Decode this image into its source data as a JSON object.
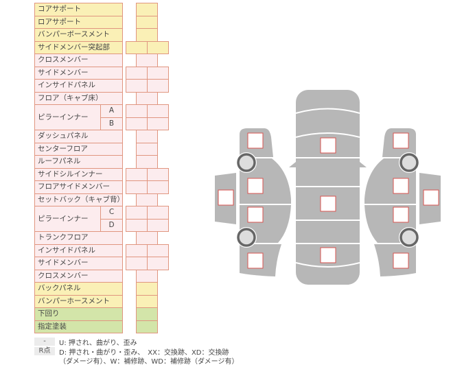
{
  "colors": {
    "yellow": "#faf0b6",
    "pink": "#fcecee",
    "green": "#d3e5a9",
    "border": "#e0957f",
    "body": "#b7b7b7",
    "mark": "#d9534f"
  },
  "rows": [
    {
      "label": "コアサポート",
      "color": "y",
      "type": "single"
    },
    {
      "label": "ロアサポート",
      "color": "y",
      "type": "single"
    },
    {
      "label": "バンパーボースメント",
      "color": "y",
      "type": "single"
    },
    {
      "label": "サイドメンバー突起部",
      "color": "y",
      "type": "double"
    },
    {
      "label": "クロスメンバー",
      "color": "p",
      "type": "single"
    },
    {
      "label": "サイドメンバー",
      "color": "p",
      "type": "double"
    },
    {
      "label": "インサイドパネル",
      "color": "p",
      "type": "double"
    },
    {
      "label": "フロア（キャブ床）",
      "color": "p",
      "type": "single"
    },
    {
      "label": "ピラーインナー",
      "sub": [
        "A",
        "B"
      ],
      "color": "p",
      "type": "double"
    },
    {
      "label": "ダッシュパネル",
      "color": "p",
      "type": "single"
    },
    {
      "label": "センターフロア",
      "color": "p",
      "type": "single"
    },
    {
      "label": "ルーフパネル",
      "color": "p",
      "type": "single"
    },
    {
      "label": "サイドシルインナー",
      "color": "p",
      "type": "double"
    },
    {
      "label": "フロアサイドメンバー",
      "color": "p",
      "type": "double"
    },
    {
      "label": "セットバック（キャブ背）",
      "color": "p",
      "type": "single"
    },
    {
      "label": "ピラーインナー",
      "sub": [
        "C",
        "D"
      ],
      "color": "p",
      "type": "double"
    },
    {
      "label": "トランクフロア",
      "color": "p",
      "type": "single"
    },
    {
      "label": "インサイドパネル",
      "color": "p",
      "type": "double"
    },
    {
      "label": "サイドメンバー",
      "color": "p",
      "type": "double"
    },
    {
      "label": "クロスメンバー",
      "color": "p",
      "type": "single"
    },
    {
      "label": "バックパネル",
      "color": "y",
      "type": "single"
    },
    {
      "label": "バンパーホースメント",
      "color": "y",
      "type": "single"
    },
    {
      "label": "下回り",
      "color": "g",
      "type": "single"
    },
    {
      "label": "指定塗装",
      "color": "g",
      "type": "single"
    }
  ],
  "legend": {
    "key1": "-",
    "text1": "U: 押され、曲がり、歪み",
    "key2": "R点",
    "text2a": "D: 押され・曲がり・歪み、　XX：交換跡、XD：交換跡",
    "text2b": "（ダメージ有）、W：補修跡、WD：補修跡（ダメージ有）"
  }
}
